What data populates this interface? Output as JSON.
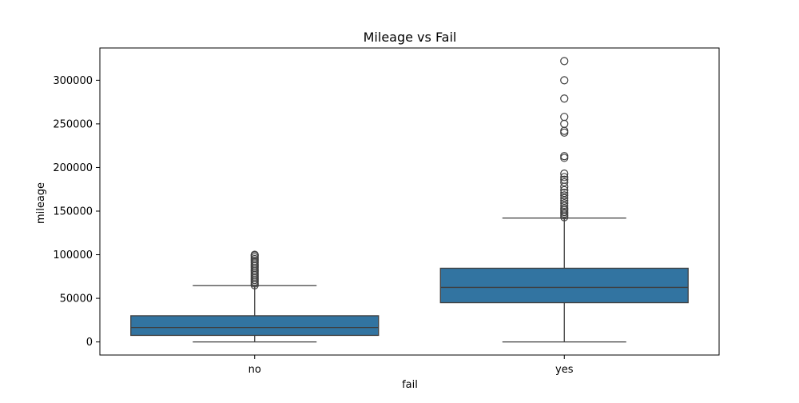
{
  "chart_data": {
    "type": "box",
    "title": "Mileage vs Fail",
    "xlabel": "fail",
    "ylabel": "mileage",
    "categories": [
      "no",
      "yes"
    ],
    "ylim": [
      -15000,
      337000
    ],
    "yticks": [
      0,
      50000,
      100000,
      150000,
      200000,
      250000,
      300000
    ],
    "ytick_labels": [
      "0",
      "50000",
      "100000",
      "150000",
      "200000",
      "250000",
      "300000"
    ],
    "grid": false,
    "legend": "none",
    "colors": {
      "box_fill": "#3274a1",
      "line": "#3f3f3f",
      "axis": "#000000"
    },
    "boxes": [
      {
        "category": "no",
        "whisker_low": 0,
        "q1": 7500,
        "median": 16500,
        "q3": 30000,
        "whisker_high": 64500,
        "outliers": [
          65000,
          67000,
          69000,
          71000,
          73000,
          75000,
          77000,
          79000,
          81000,
          83000,
          85000,
          87000,
          89000,
          91000,
          93000,
          95000,
          97000,
          99000,
          100000
        ]
      },
      {
        "category": "yes",
        "whisker_low": 0,
        "q1": 45000,
        "median": 62500,
        "q3": 84500,
        "whisker_high": 142000,
        "outliers": [
          143000,
          145000,
          147000,
          149000,
          151000,
          153000,
          156000,
          159000,
          162000,
          165000,
          168000,
          171000,
          174000,
          178000,
          183000,
          186000,
          189000,
          193000,
          211000,
          213000,
          240000,
          242000,
          250000,
          258000,
          279000,
          300000,
          322000
        ]
      }
    ]
  }
}
